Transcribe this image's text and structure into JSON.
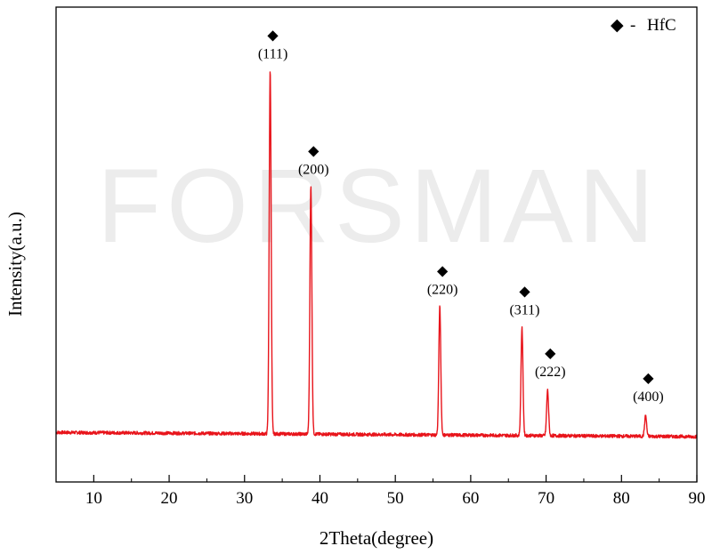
{
  "watermark": "FORSMAN",
  "chart_data": {
    "type": "line",
    "xlabel": "2Theta(degree)",
    "ylabel": "Intensity(a.u.)",
    "xlim": [
      5,
      90
    ],
    "ylim": [
      0,
      1.15
    ],
    "xticks": [
      10,
      20,
      30,
      40,
      50,
      60,
      70,
      80,
      90
    ],
    "yticks_visible": false,
    "grid": false,
    "line_color": "#e8141b",
    "legend": {
      "position": "top-right",
      "entries": [
        {
          "marker": "◆",
          "separator": "-",
          "label": "HfC"
        }
      ]
    },
    "baseline": 0.12,
    "series": [
      {
        "name": "HfC",
        "peaks": [
          {
            "x": 33.4,
            "y": 1.0,
            "label": "(111)"
          },
          {
            "x": 38.8,
            "y": 0.72,
            "label": "(200)"
          },
          {
            "x": 55.9,
            "y": 0.43,
            "label": "(220)"
          },
          {
            "x": 66.8,
            "y": 0.38,
            "label": "(311)"
          },
          {
            "x": 70.2,
            "y": 0.23,
            "label": "(222)"
          },
          {
            "x": 83.2,
            "y": 0.17,
            "label": "(400)"
          }
        ]
      }
    ]
  }
}
